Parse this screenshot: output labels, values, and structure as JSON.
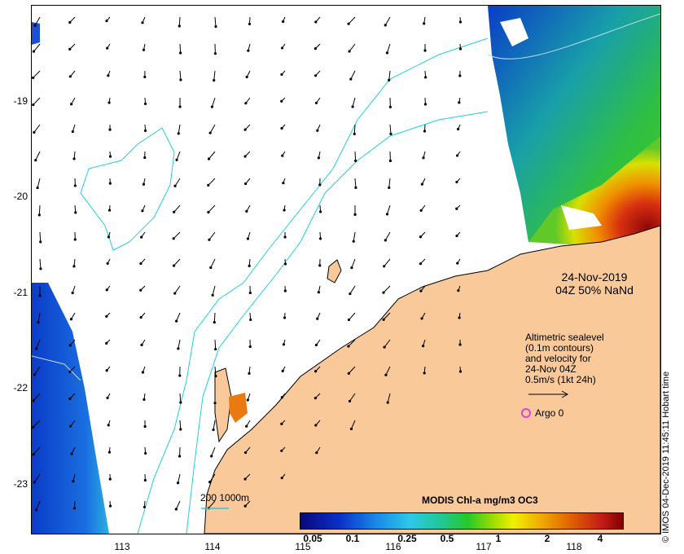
{
  "map": {
    "y_ticks": [
      "-19",
      "-20",
      "-21",
      "-22",
      "-23"
    ],
    "x_ticks": [
      "113",
      "114",
      "115",
      "116",
      "117",
      "118"
    ]
  },
  "annotations": {
    "date": "24-Nov-2019",
    "time_info": "04Z  50% NaNd",
    "altimetric_lines": [
      "Altimetric sealevel",
      "(0.1m contours)",
      "and velocity for",
      "24-Nov 04Z",
      "0.5m/s (1kt 24h)"
    ],
    "argo": "Argo 0",
    "scale_text": "200  1000m"
  },
  "colorbar": {
    "title": "MODIS Chl-a mg/m3 OC3",
    "labels": [
      "0.05",
      "0.1",
      "0.25",
      "0.5",
      "1",
      "2",
      "4"
    ]
  },
  "credit": "© IMOS 04-Dec-2019 11:45:11 Hobart time",
  "colors": {
    "land": "#f9c99a",
    "contour": "#20d0d8",
    "argo": "#e040e0"
  }
}
